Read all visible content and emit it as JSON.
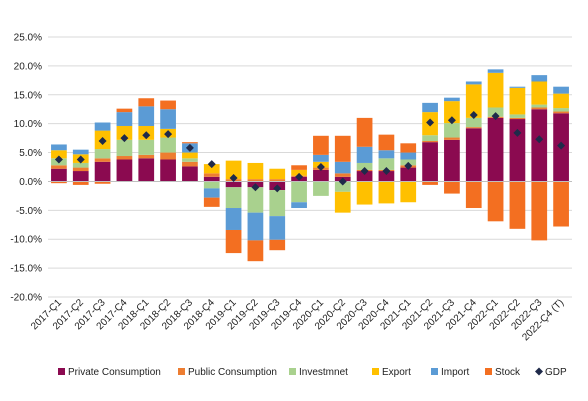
{
  "chart_data": {
    "type": "bar",
    "stacked": true,
    "categories": [
      "2017-Ç1",
      "2017-Ç2",
      "2017-Ç3",
      "2017-Ç4",
      "2018-Ç1",
      "2018-Ç2",
      "2018-Ç3",
      "2018-Ç4",
      "2019-Ç1",
      "2019-Ç2",
      "2019-Ç3",
      "2019-Ç4",
      "2020-Ç1",
      "2020-Ç2",
      "2020-Ç3",
      "2020-Ç4",
      "2021-Ç1",
      "2021-Ç2",
      "2021-Ç3",
      "2021-Ç4",
      "2022-Ç1",
      "2022-Ç2",
      "2022-Ç3",
      "2022-Ç4 (T)"
    ],
    "ylim": [
      -20,
      25
    ],
    "yticks": [
      "25.0%",
      "20.0%",
      "15.0%",
      "10.0%",
      "5.0%",
      "0.0%",
      "-5.0%",
      "-10.0%",
      "-15.0%",
      "-20.0%"
    ],
    "grid": true,
    "legend_position": "bottom",
    "series": [
      {
        "name": "Private Consumption",
        "color": "#8B0A50",
        "values": [
          2.2,
          1.8,
          3.4,
          3.8,
          4.0,
          3.8,
          2.6,
          0.8,
          -1.0,
          -1.0,
          -1.5,
          0.8,
          2.0,
          0.8,
          1.8,
          1.8,
          2.4,
          6.8,
          7.2,
          9.2,
          11.0,
          10.8,
          12.5,
          11.8
        ]
      },
      {
        "name": "Public Consumption",
        "color": "#ED7D31",
        "values": [
          0.6,
          0.6,
          0.6,
          0.6,
          0.6,
          1.2,
          0.8,
          0.6,
          0.4,
          0.4,
          0.4,
          0.2,
          0.4,
          0.6,
          0.2,
          0.2,
          0.4,
          0.2,
          0.4,
          0.2,
          0.2,
          0.2,
          0.3,
          0.3
        ]
      },
      {
        "name": "Investmnet",
        "color": "#A9D18E",
        "values": [
          1.2,
          0.8,
          1.6,
          2.8,
          2.6,
          2.6,
          0.6,
          -1.2,
          -3.6,
          -4.4,
          -4.5,
          -3.6,
          -2.5,
          -1.8,
          1.2,
          2.0,
          1.0,
          1.0,
          2.5,
          1.6,
          1.6,
          0.6,
          0.5,
          0.6
        ]
      },
      {
        "name": "Export",
        "color": "#FFC000",
        "values": [
          1.4,
          1.5,
          3.2,
          2.4,
          2.4,
          1.5,
          1.0,
          1.6,
          3.2,
          2.8,
          1.8,
          1.0,
          1.0,
          -3.6,
          -4.0,
          -3.8,
          -3.6,
          4.0,
          3.8,
          5.8,
          6.0,
          4.6,
          4.0,
          2.5
        ]
      },
      {
        "name": "Import",
        "color": "#5B9BD5",
        "values": [
          1.0,
          0.8,
          1.4,
          2.4,
          3.4,
          3.4,
          1.6,
          -1.6,
          -3.8,
          -4.8,
          -4.1,
          -1.0,
          1.2,
          2.0,
          2.8,
          1.4,
          1.2,
          1.6,
          0.6,
          0.5,
          0.6,
          0.2,
          1.1,
          1.2
        ]
      },
      {
        "name": "Stock",
        "color": "#F36F21",
        "values": [
          -0.3,
          -0.6,
          -0.4,
          0.6,
          1.4,
          1.5,
          0.2,
          -1.6,
          -4.0,
          -3.6,
          -1.8,
          0.8,
          3.3,
          4.5,
          5.0,
          2.7,
          1.6,
          -0.6,
          -2.1,
          -4.6,
          -6.9,
          -8.2,
          -10.2,
          -7.8
        ]
      }
    ],
    "gdp": {
      "name": "GDP",
      "color": "#1F2A4A",
      "values": [
        3.8,
        3.8,
        7.0,
        7.5,
        8.0,
        8.2,
        5.8,
        3.0,
        0.6,
        -1.0,
        -1.2,
        0.8,
        2.5,
        0.0,
        1.8,
        1.8,
        2.7,
        10.2,
        10.6,
        11.5,
        11.3,
        8.4,
        7.3,
        6.2
      ]
    }
  }
}
